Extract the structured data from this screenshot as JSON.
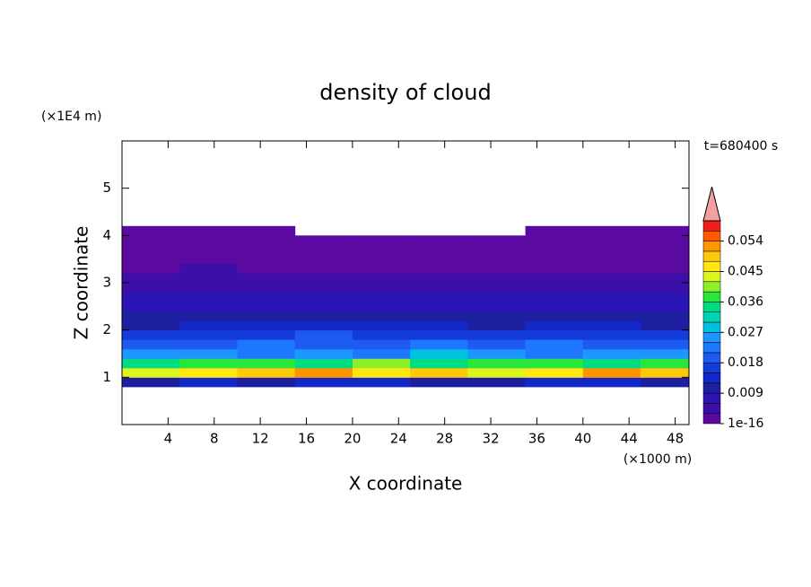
{
  "chart_data": {
    "type": "contour",
    "title": "density of cloud",
    "y_unit": "(×1E4 m)",
    "x_unit": "(×1000 m)",
    "x_label": "X coordinate",
    "y_label": "Z coordinate",
    "time_label": "t=680400 s",
    "xlim": [
      0,
      49.2
    ],
    "ylim": [
      0,
      6
    ],
    "xticks": [
      4,
      8,
      12,
      16,
      20,
      24,
      28,
      32,
      36,
      40,
      44,
      48
    ],
    "yticks": [
      1,
      2,
      3,
      4,
      5
    ],
    "x": [
      2.5,
      7.5,
      12.5,
      17.5,
      22.5,
      27.5,
      32.5,
      37.5,
      42.5,
      47.5
    ],
    "z": [
      0.9,
      1.1,
      1.3,
      1.5,
      1.7,
      1.9,
      2.1,
      2.3,
      2.5,
      2.7,
      2.9,
      3.1,
      3.3,
      3.5,
      3.7,
      3.9,
      4.1
    ],
    "values": [
      [
        0.01,
        0.012,
        0.011,
        0.013,
        0.012,
        0.01,
        0.011,
        0.013,
        0.012,
        0.011
      ],
      [
        0.042,
        0.046,
        0.05,
        0.052,
        0.047,
        0.048,
        0.044,
        0.046,
        0.051,
        0.049
      ],
      [
        0.033,
        0.036,
        0.038,
        0.035,
        0.039,
        0.034,
        0.036,
        0.037,
        0.035,
        0.038
      ],
      [
        0.024,
        0.026,
        0.022,
        0.025,
        0.023,
        0.027,
        0.024,
        0.022,
        0.025,
        0.026
      ],
      [
        0.019,
        0.02,
        0.021,
        0.018,
        0.02,
        0.022,
        0.019,
        0.021,
        0.018,
        0.02
      ],
      [
        0.015,
        0.017,
        0.016,
        0.018,
        0.016,
        0.015,
        0.017,
        0.016,
        0.015,
        0.017
      ],
      [
        0.011,
        0.012,
        0.013,
        0.014,
        0.013,
        0.012,
        0.011,
        0.012,
        0.012,
        0.011
      ],
      [
        0.009,
        0.01,
        0.01,
        0.011,
        0.01,
        0.009,
        0.01,
        0.009,
        0.009,
        0.01
      ],
      [
        0.007,
        0.008,
        0.008,
        0.008,
        0.008,
        0.007,
        0.007,
        0.008,
        0.007,
        0.008
      ],
      [
        0.006,
        0.006,
        0.007,
        0.006,
        0.006,
        0.006,
        0.006,
        0.007,
        0.006,
        0.006
      ],
      [
        0.005,
        0.005,
        0.005,
        0.005,
        0.005,
        0.005,
        0.004,
        0.005,
        0.005,
        0.005
      ],
      [
        0.004,
        0.004,
        0.004,
        0.004,
        0.004,
        0.004,
        0.004,
        0.004,
        0.004,
        0.004
      ],
      [
        0.002,
        0.003,
        0.002,
        0.002,
        0.002,
        0.002,
        0.002,
        0.002,
        0.002,
        0.002
      ],
      [
        0.001,
        0.002,
        0.001,
        0.001,
        0.001,
        0.001,
        0.001,
        0.001,
        0.001,
        0.001
      ],
      [
        0.001,
        0.001,
        0.001,
        0.001,
        0.001,
        0.001,
        0.001,
        0.001,
        0.001,
        0.001
      ],
      [
        0.0005,
        0.0005,
        0.0005,
        0.0005,
        0.0005,
        0.0005,
        0.0005,
        0.0005,
        0.0005,
        0.0005
      ],
      [
        0.0001,
        0.0001,
        0.0001,
        null,
        null,
        null,
        null,
        0.0001,
        0.0001,
        0.0001
      ]
    ],
    "levels": [
      1e-16,
      0.003,
      0.006,
      0.009,
      0.012,
      0.015,
      0.018,
      0.021,
      0.024,
      0.027,
      0.03,
      0.033,
      0.036,
      0.039,
      0.042,
      0.045,
      0.048,
      0.051,
      0.054,
      0.057,
      0.06
    ],
    "colors": [
      "#5a0aa0",
      "#3c0fa8",
      "#2d14b4",
      "#1e1ea0",
      "#1428c8",
      "#143cdc",
      "#1e5af0",
      "#1e78ff",
      "#1e96ff",
      "#00c0e0",
      "#00d2b4",
      "#00dc82",
      "#28e63c",
      "#8cf028",
      "#dcf51e",
      "#ffe614",
      "#ffc80a",
      "#ff9600",
      "#ff5a00",
      "#f01e1e"
    ],
    "extend_color": "#f5a0a0",
    "colorbar_ticks": [
      1e-16,
      0.009,
      0.018,
      0.027,
      0.036,
      0.045,
      0.054
    ]
  }
}
